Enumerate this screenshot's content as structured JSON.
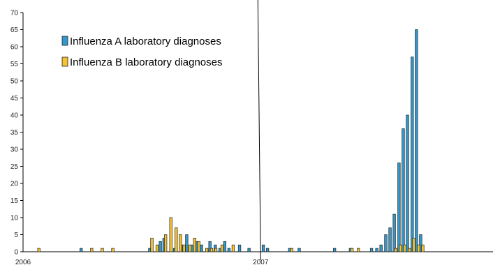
{
  "chart_data": {
    "type": "bar",
    "title": "",
    "xlabel": "",
    "ylabel": "",
    "ylim": [
      0,
      70
    ],
    "yticks": [
      0,
      5,
      10,
      15,
      20,
      25,
      30,
      35,
      40,
      45,
      50,
      55,
      60,
      65,
      70
    ],
    "xlim_weeks": [
      0,
      89
    ],
    "x_tick_labels": [
      {
        "label": "2006",
        "week": 0
      },
      {
        "label": "2007",
        "week": 45
      }
    ],
    "year_divider_week": 45,
    "grid": false,
    "legend_position": "top-left",
    "x_unit": "week since start of 2006",
    "series": [
      {
        "name": "Influenza A laboratory diagnoses",
        "color": "#3399cc",
        "points": [
          [
            11,
            1
          ],
          [
            24,
            1
          ],
          [
            26,
            3
          ],
          [
            26.7,
            4
          ],
          [
            28.7,
            1
          ],
          [
            30,
            2
          ],
          [
            31,
            5
          ],
          [
            32,
            2
          ],
          [
            33,
            3
          ],
          [
            33.8,
            2
          ],
          [
            35.4,
            3
          ],
          [
            36.4,
            2
          ],
          [
            37.3,
            1
          ],
          [
            38.2,
            3
          ],
          [
            39,
            1
          ],
          [
            41,
            2
          ],
          [
            42.8,
            1
          ],
          [
            45.5,
            2
          ],
          [
            46.3,
            1
          ],
          [
            50.5,
            1
          ],
          [
            52.3,
            1
          ],
          [
            59,
            1
          ],
          [
            62,
            1
          ],
          [
            66,
            1
          ],
          [
            67,
            1
          ],
          [
            67.8,
            2
          ],
          [
            68.7,
            5
          ],
          [
            69.5,
            7
          ],
          [
            70.3,
            11
          ],
          [
            71.2,
            26
          ],
          [
            72,
            36
          ],
          [
            72.8,
            40
          ],
          [
            73.7,
            57
          ],
          [
            74.5,
            65
          ],
          [
            75.3,
            5
          ]
        ]
      },
      {
        "name": "Influenza B laboratory diagnoses",
        "color": "#f5c230",
        "points": [
          [
            3,
            1
          ],
          [
            13,
            1
          ],
          [
            15,
            1
          ],
          [
            17,
            1
          ],
          [
            24.4,
            4
          ],
          [
            25.4,
            2
          ],
          [
            27,
            5
          ],
          [
            28,
            10
          ],
          [
            29,
            7
          ],
          [
            29.8,
            5
          ],
          [
            30.5,
            2
          ],
          [
            31.6,
            2
          ],
          [
            32.5,
            4
          ],
          [
            33.3,
            3
          ],
          [
            34.8,
            1
          ],
          [
            35.7,
            1
          ],
          [
            36.5,
            1
          ],
          [
            37.7,
            2
          ],
          [
            39.8,
            2
          ],
          [
            50.9,
            1
          ],
          [
            62.3,
            1
          ],
          [
            63.5,
            1
          ],
          [
            70.6,
            1
          ],
          [
            71.5,
            2
          ],
          [
            72.3,
            2
          ],
          [
            73.2,
            1
          ],
          [
            74,
            4
          ],
          [
            74.9,
            2
          ],
          [
            75.7,
            2
          ]
        ]
      }
    ]
  }
}
